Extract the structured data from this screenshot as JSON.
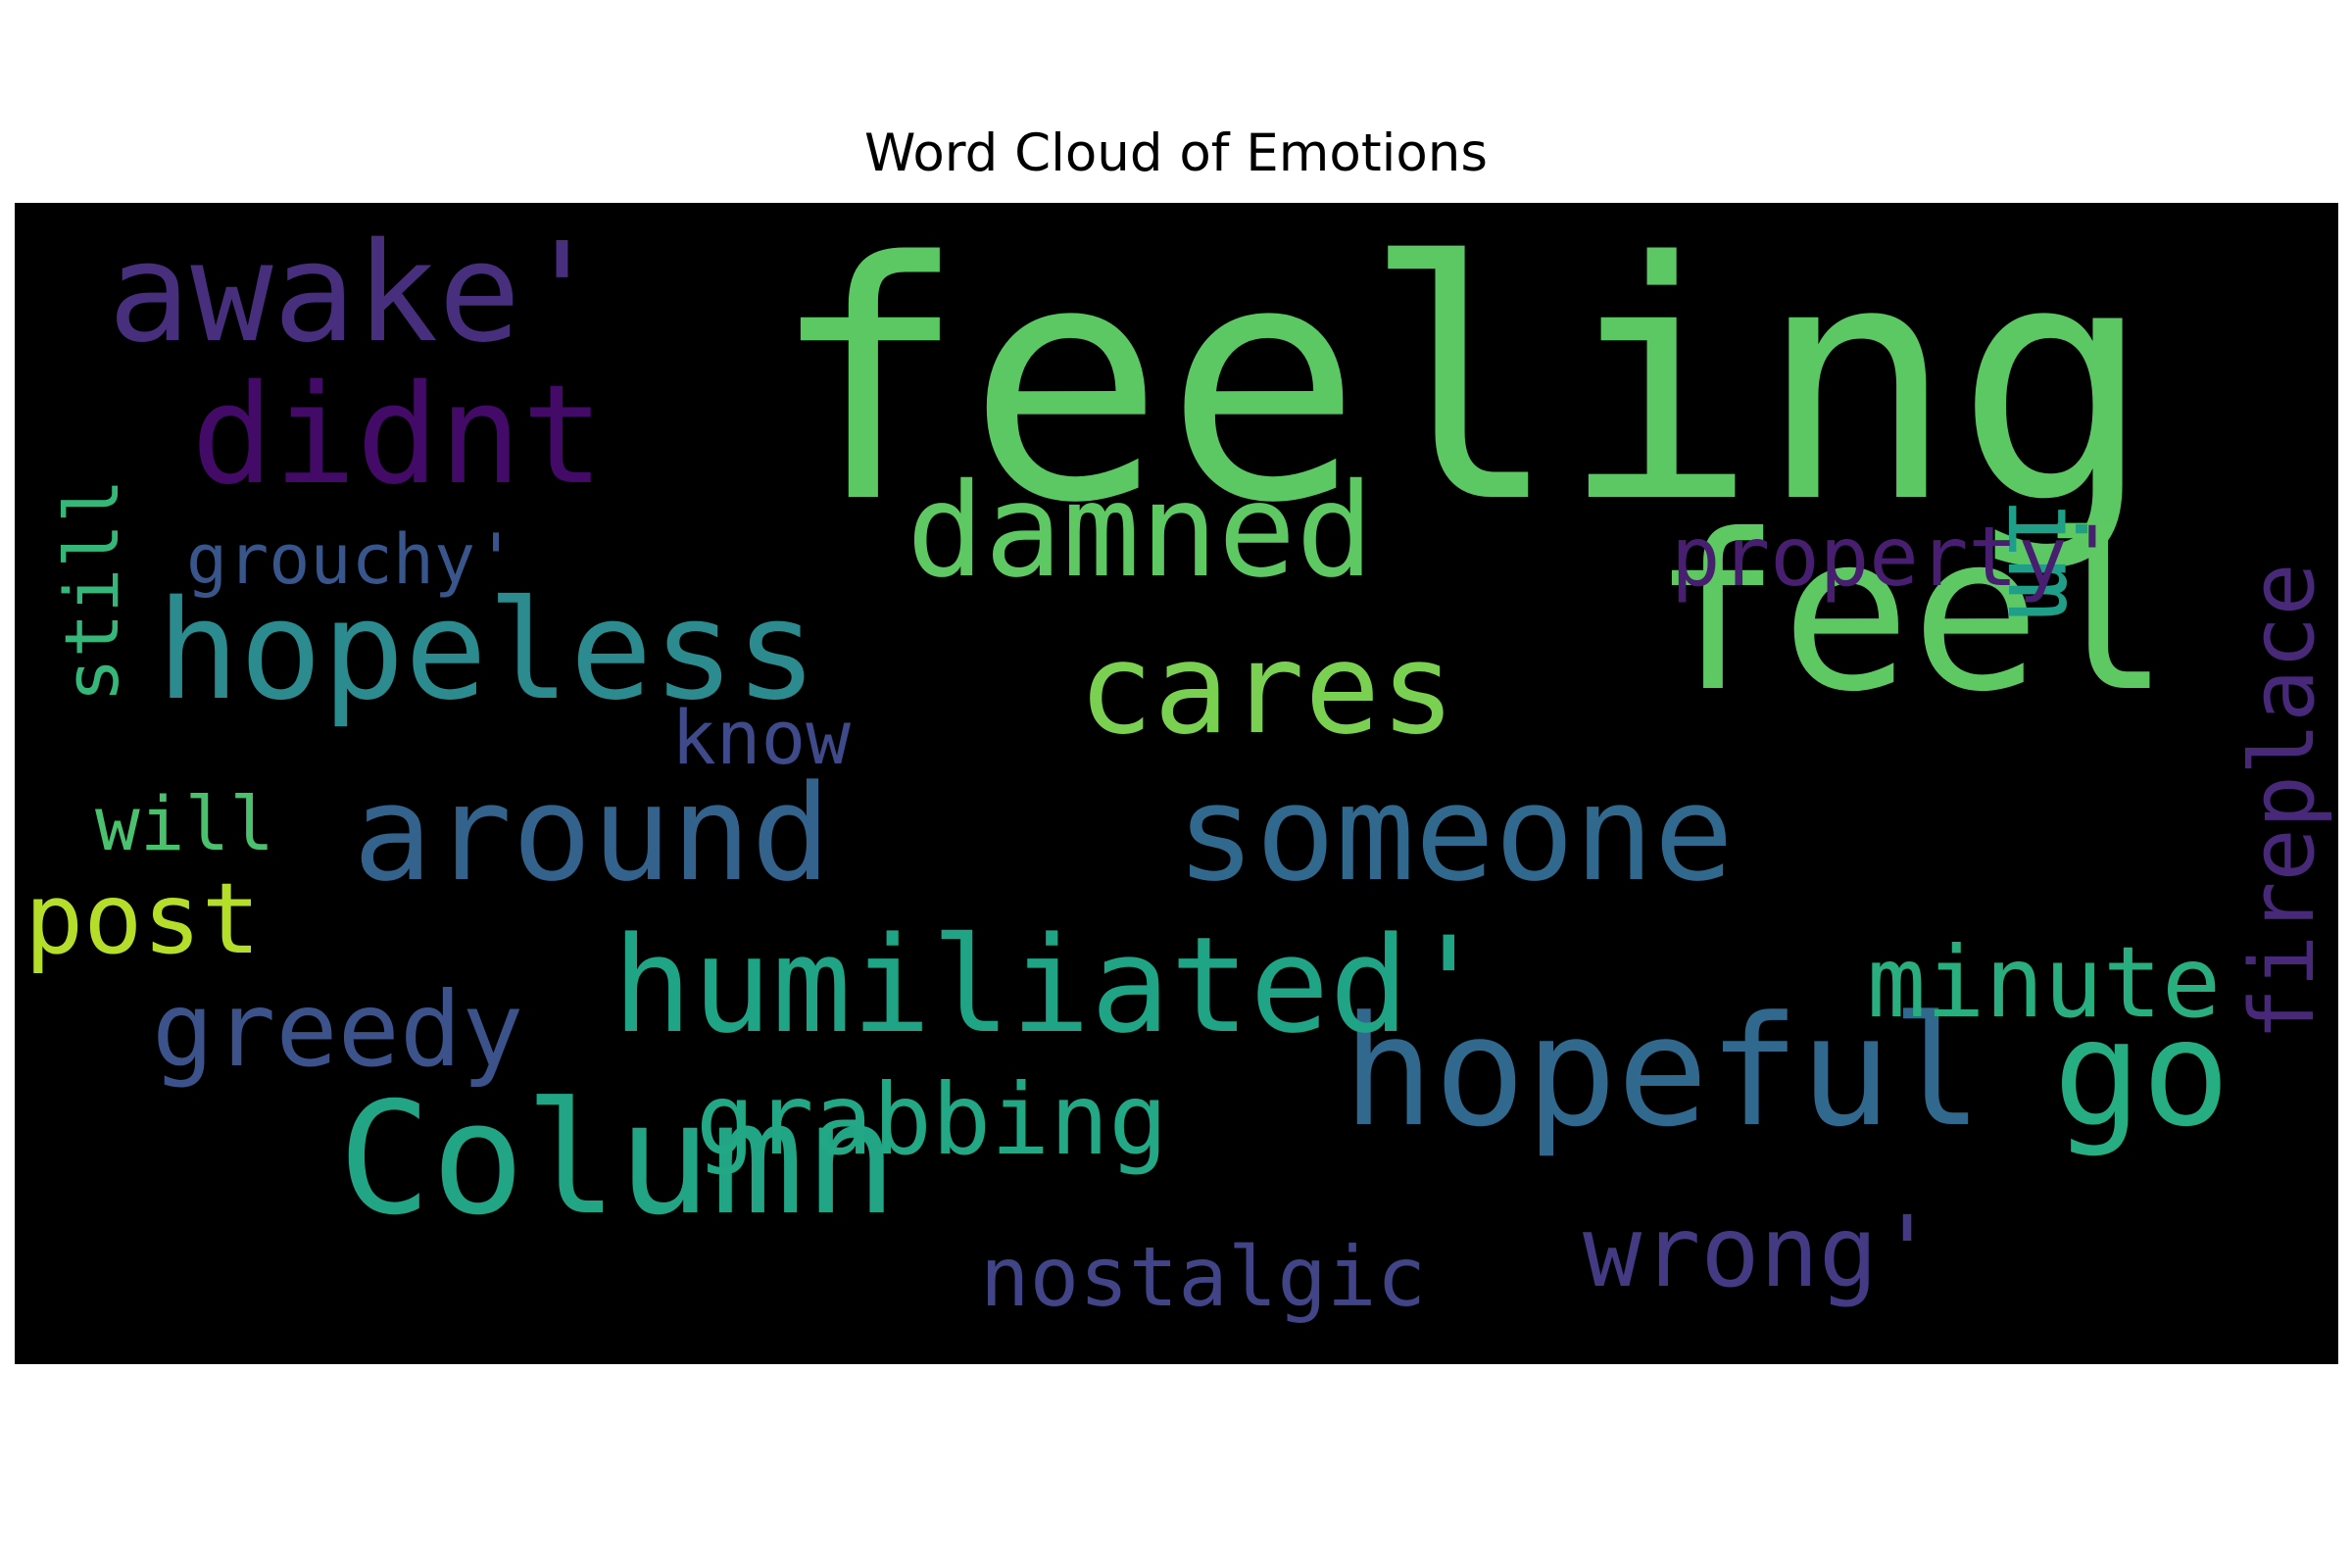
{
  "chart_data": {
    "type": "wordcloud",
    "title": "Word Cloud of Emotions",
    "background": "#000000",
    "colormap": "viridis",
    "words": [
      {
        "text": "feeling",
        "weight": 1.0,
        "color": "#5cc863"
      },
      {
        "text": "feel",
        "weight": 0.88,
        "color": "#5ec962"
      },
      {
        "text": "Column",
        "weight": 0.68,
        "color": "#21a585"
      },
      {
        "text": "hopeful",
        "weight": 0.66,
        "color": "#31688e"
      },
      {
        "text": "go",
        "weight": 0.64,
        "color": "#26ad81"
      },
      {
        "text": "awake'",
        "weight": 0.6,
        "color": "#472f7d"
      },
      {
        "text": "didnt",
        "weight": 0.6,
        "color": "#440a68"
      },
      {
        "text": "hopeless",
        "weight": 0.6,
        "color": "#2c8b8e"
      },
      {
        "text": "around",
        "weight": 0.57,
        "color": "#33638d"
      },
      {
        "text": "someone",
        "weight": 0.57,
        "color": "#31688e"
      },
      {
        "text": "humiliated'",
        "weight": 0.57,
        "color": "#20a486"
      },
      {
        "text": "damned",
        "weight": 0.57,
        "color": "#5ec962"
      },
      {
        "text": "cares",
        "weight": 0.55,
        "color": "#7ad151"
      },
      {
        "text": "im",
        "weight": 0.45,
        "color": "#1f9f88"
      },
      {
        "text": "greedy",
        "weight": 0.44,
        "color": "#3b528b"
      },
      {
        "text": "post",
        "weight": 0.42,
        "color": "#b5de2b"
      },
      {
        "text": "minute",
        "weight": 0.42,
        "color": "#29af7f"
      },
      {
        "text": "grabbing",
        "weight": 0.42,
        "color": "#22a884"
      },
      {
        "text": "wrong'",
        "weight": 0.42,
        "color": "#443983"
      },
      {
        "text": "fireplace",
        "weight": 0.38,
        "color": "#482878"
      },
      {
        "text": "nostalgic",
        "weight": 0.36,
        "color": "#414487"
      },
      {
        "text": "property'",
        "weight": 0.36,
        "color": "#481f70"
      },
      {
        "text": "know",
        "weight": 0.32,
        "color": "#3e4a89"
      },
      {
        "text": "still",
        "weight": 0.3,
        "color": "#35b779"
      },
      {
        "text": "will",
        "weight": 0.3,
        "color": "#4ac16d"
      },
      {
        "text": "grouchy'",
        "weight": 0.28,
        "color": "#39568c"
      }
    ]
  }
}
